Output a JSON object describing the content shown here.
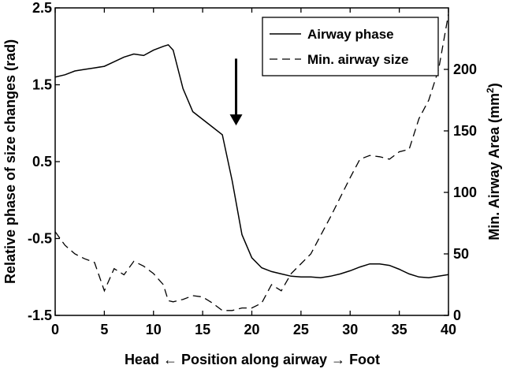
{
  "chart_data": {
    "type": "line",
    "x": [
      0,
      1,
      2,
      3,
      4,
      5,
      6,
      7,
      8,
      9,
      10,
      11,
      11.5,
      12,
      13,
      14,
      15,
      16,
      17,
      18,
      19,
      20,
      21,
      22,
      23,
      24,
      25,
      26,
      27,
      28,
      29,
      30,
      31,
      32,
      33,
      34,
      35,
      36,
      37,
      38,
      39,
      40
    ],
    "series": [
      {
        "name": "Airway phase",
        "axis": "left",
        "style": "solid",
        "values": [
          1.6,
          1.63,
          1.68,
          1.7,
          1.72,
          1.74,
          1.8,
          1.86,
          1.9,
          1.88,
          1.95,
          2.0,
          2.02,
          1.95,
          1.45,
          1.15,
          1.05,
          0.95,
          0.85,
          0.25,
          -0.45,
          -0.75,
          -0.88,
          -0.93,
          -0.96,
          -0.99,
          -1.0,
          -1.0,
          -1.01,
          -0.99,
          -0.96,
          -0.92,
          -0.87,
          -0.83,
          -0.83,
          -0.85,
          -0.9,
          -0.96,
          -1.0,
          -1.01,
          -0.99,
          -0.97
        ]
      },
      {
        "name": "Min. airway size",
        "axis": "right",
        "style": "dashed",
        "values": [
          68,
          57,
          50,
          46,
          43,
          20,
          38,
          33,
          44,
          40,
          34,
          25,
          12,
          11,
          13,
          16,
          15,
          10,
          4,
          4,
          6,
          6,
          10,
          25,
          20,
          34,
          42,
          50,
          65,
          80,
          96,
          112,
          127,
          130,
          129,
          127,
          133,
          135,
          160,
          175,
          200,
          245
        ]
      }
    ],
    "xlabel_left": "Head",
    "xlabel_mid": "Position along airway",
    "xlabel_right": "Foot",
    "ylabel_left": "Relative phase of size changes (rad)",
    "ylabel_right_prefix": "Min. Airway Area (mm",
    "ylabel_right_sup": "2",
    "ylabel_right_suffix": ")",
    "xlim": [
      0,
      40
    ],
    "ylim_left": [
      -1.5,
      2.5
    ],
    "ylim_right": [
      0,
      250
    ],
    "xticks": [
      0,
      5,
      10,
      15,
      20,
      25,
      30,
      35,
      40
    ],
    "yticks_left": [
      "-1.5",
      "-0.5",
      "0.5",
      "1.5",
      "2.5"
    ],
    "yticks_right": [
      "0",
      "50",
      "100",
      "150",
      "200"
    ],
    "annotation": {
      "type": "arrow-down",
      "x": 18.4,
      "y_tip": 0.97,
      "y_tail": 1.84
    },
    "legend": {
      "placement": "top-right"
    },
    "grid": false
  }
}
